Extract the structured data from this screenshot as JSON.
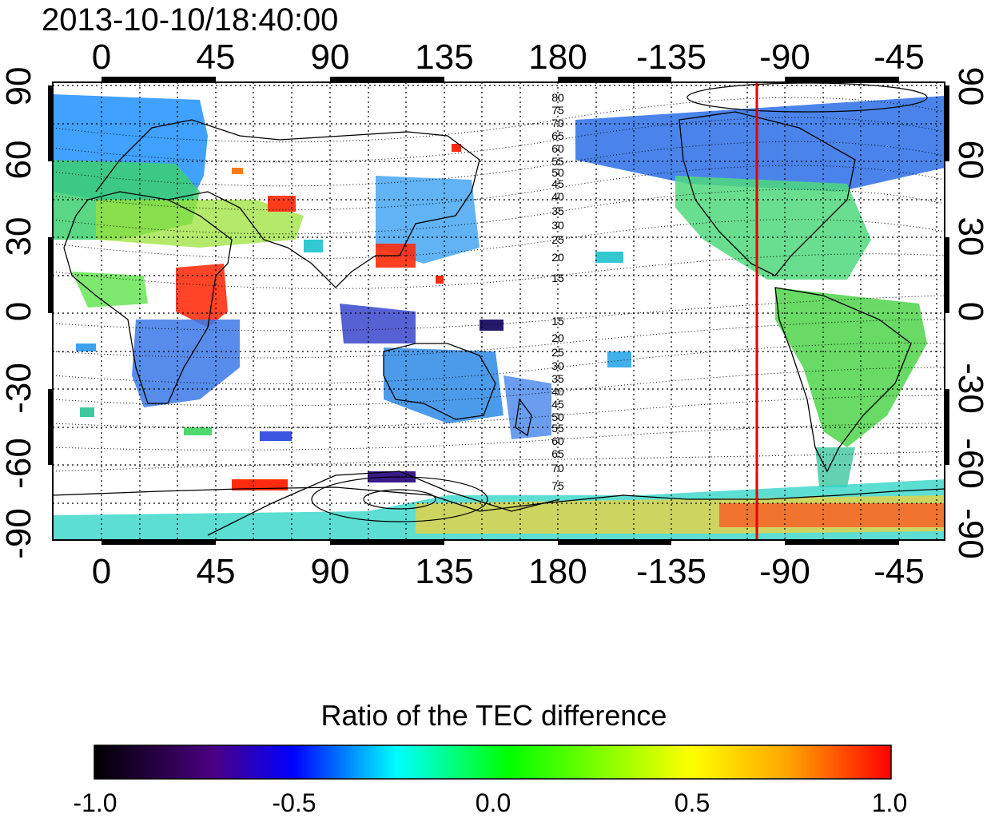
{
  "title": "2013-10-10/18:40:00",
  "map": {
    "lon_ticks": [
      "0",
      "45",
      "90",
      "135",
      "180",
      "-135",
      "-90",
      "-45"
    ],
    "lat_ticks": [
      "90",
      "60",
      "30",
      "0",
      "-30",
      "-60",
      "-90"
    ],
    "marker_line_lon": "-98",
    "marker_line_color": "#ff0000"
  },
  "contours": {
    "north_labels": [
      "80",
      "75",
      "70",
      "65",
      "60",
      "55",
      "50",
      "45",
      "40",
      "35",
      "30",
      "25",
      "20",
      "15"
    ],
    "south_labels": [
      "15",
      "20",
      "25",
      "30",
      "35",
      "40",
      "45",
      "50",
      "55",
      "60",
      "65",
      "70",
      "75"
    ]
  },
  "colorbar": {
    "title": "Ratio of the TEC difference",
    "tick_labels": [
      "-1.0",
      "-0.5",
      "0.0",
      "0.5",
      "1.0"
    ],
    "stops": [
      "#000000",
      "#4b0082",
      "#0000ff",
      "#00ffff",
      "#00ff00",
      "#ffff00",
      "#ffa500",
      "#ff0000"
    ]
  }
}
